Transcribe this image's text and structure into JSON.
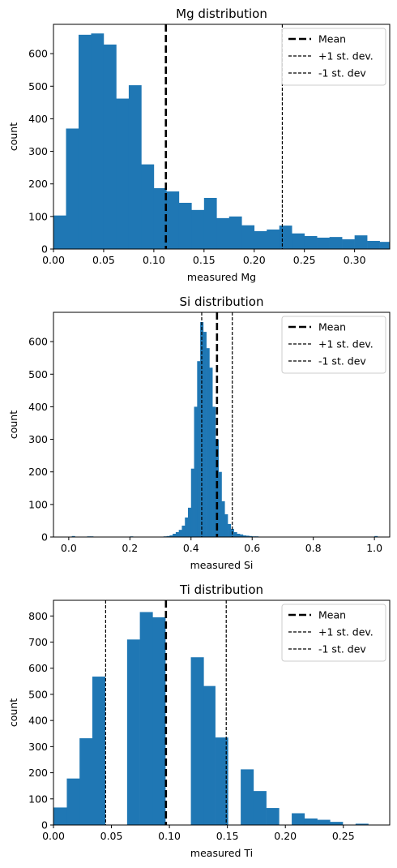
{
  "chart_data": [
    {
      "type": "bar",
      "title": "Mg distribution",
      "xlabel": "measured Mg",
      "ylabel": "count",
      "xlim": [
        0,
        0.335
      ],
      "ylim": [
        0,
        690
      ],
      "xticks": [
        0.0,
        0.05,
        0.1,
        0.15,
        0.2,
        0.25,
        0.3
      ],
      "xtick_labels": [
        "0.00",
        "0.05",
        "0.10",
        "0.15",
        "0.20",
        "0.25",
        "0.30"
      ],
      "yticks": [
        0,
        100,
        200,
        300,
        400,
        500,
        600
      ],
      "bin_edges": [
        0,
        0.0125,
        0.025,
        0.0375,
        0.05,
        0.0625,
        0.075,
        0.0875,
        0.1,
        0.1125,
        0.125,
        0.1375,
        0.15,
        0.1625,
        0.175,
        0.1875,
        0.2,
        0.2125,
        0.225,
        0.2375,
        0.25,
        0.2625,
        0.275,
        0.2875,
        0.3,
        0.3125,
        0.325,
        0.3375
      ],
      "counts": [
        103,
        370,
        658,
        662,
        628,
        462,
        503,
        260,
        187,
        177,
        142,
        120,
        157,
        95,
        100,
        73,
        55,
        60,
        72,
        48,
        40,
        35,
        37,
        30,
        42,
        25,
        22
      ],
      "mean": 0.112,
      "plus_sd": 0.228,
      "minus_sd": -0.004,
      "legend": {
        "loc": "upper right",
        "entries": [
          "Mean",
          "+1 st. dev.",
          "-1 st. dev"
        ]
      },
      "bar_color": "#1f77b4"
    },
    {
      "type": "bar",
      "title": "Si distribution",
      "xlabel": "measured Si",
      "ylabel": "count",
      "xlim": [
        -0.05,
        1.05
      ],
      "ylim": [
        0,
        690
      ],
      "xticks": [
        0.0,
        0.2,
        0.4,
        0.6,
        0.8,
        1.0
      ],
      "xtick_labels": [
        "0.0",
        "0.2",
        "0.4",
        "0.6",
        "0.8",
        "1.0"
      ],
      "yticks": [
        0,
        100,
        200,
        300,
        400,
        500,
        600
      ],
      "bin_start": 0.0,
      "bin_width": 0.01,
      "counts": [
        0,
        3,
        0,
        0,
        0,
        0,
        2,
        2,
        0,
        0,
        0,
        0,
        0,
        0,
        0,
        0,
        0,
        0,
        0,
        0,
        2,
        0,
        0,
        0,
        0,
        0,
        0,
        0,
        0,
        0,
        1,
        2,
        3,
        5,
        10,
        15,
        22,
        35,
        60,
        90,
        210,
        400,
        540,
        660,
        630,
        580,
        520,
        400,
        300,
        200,
        110,
        70,
        40,
        25,
        15,
        10,
        8,
        5,
        4,
        3,
        2,
        2,
        1,
        1,
        1,
        1,
        0,
        0,
        0,
        1,
        0,
        0,
        0,
        0,
        0,
        0,
        0,
        0,
        0,
        0,
        0,
        1,
        0,
        0,
        0,
        0,
        0,
        0,
        0,
        0,
        0,
        0,
        0,
        0,
        0,
        0,
        0,
        0,
        0,
        0,
        3
      ],
      "mean": 0.485,
      "plus_sd": 0.535,
      "minus_sd": 0.435,
      "legend": {
        "loc": "upper right",
        "entries": [
          "Mean",
          "+1 st. dev.",
          "-1 st. dev"
        ]
      },
      "bar_color": "#1f77b4"
    },
    {
      "type": "bar",
      "title": "Ti distribution",
      "xlabel": "measured Ti",
      "ylabel": "count",
      "xlim": [
        0,
        0.29
      ],
      "ylim": [
        0,
        860
      ],
      "xticks": [
        0.0,
        0.05,
        0.1,
        0.15,
        0.2,
        0.25
      ],
      "xtick_labels": [
        "0.00",
        "0.05",
        "0.10",
        "0.15",
        "0.20",
        "0.25"
      ],
      "yticks": [
        0,
        100,
        200,
        300,
        400,
        500,
        600,
        700,
        800
      ],
      "bin_edges": [
        0,
        0.0115,
        0.0225,
        0.0335,
        0.0445,
        0.0545,
        0.0635,
        0.0745,
        0.0855,
        0.0965,
        0.1075,
        0.1185,
        0.1295,
        0.1395,
        0.1505,
        0.1615,
        0.1725,
        0.1835,
        0.1945,
        0.2055,
        0.2165,
        0.2275,
        0.2385,
        0.2495,
        0.2605,
        0.2715,
        0.29
      ],
      "counts": [
        67,
        178,
        332,
        568,
        0,
        0,
        710,
        815,
        795,
        0,
        0,
        642,
        532,
        335,
        0,
        213,
        130,
        65,
        0,
        45,
        25,
        20,
        12,
        0,
        5,
        0
      ],
      "mean": 0.097,
      "plus_sd": 0.149,
      "minus_sd": 0.045,
      "legend": {
        "loc": "upper right",
        "entries": [
          "Mean",
          "+1 st. dev.",
          "-1 st. dev"
        ]
      },
      "bar_color": "#1f77b4"
    }
  ]
}
